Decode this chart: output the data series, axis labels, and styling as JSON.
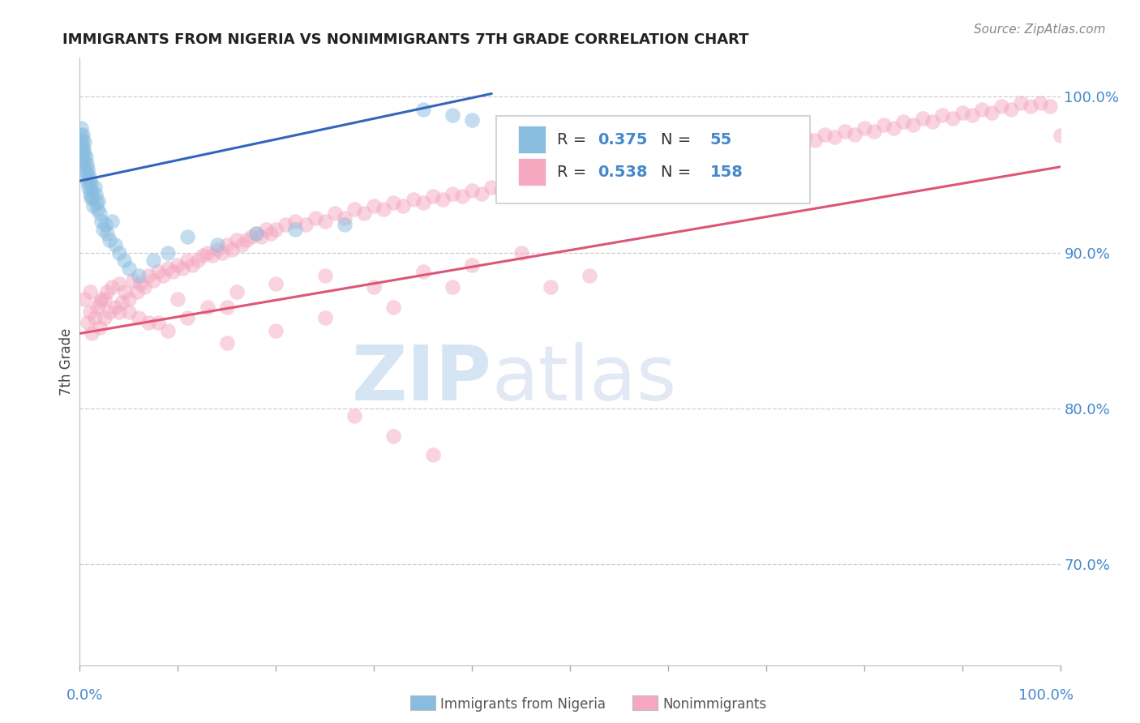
{
  "title": "IMMIGRANTS FROM NIGERIA VS NONIMMIGRANTS 7TH GRADE CORRELATION CHART",
  "source": "Source: ZipAtlas.com",
  "ylabel": "7th Grade",
  "blue_color": "#89bde0",
  "pink_color": "#f5a8c0",
  "blue_line_color": "#3366bb",
  "pink_line_color": "#dd5577",
  "xlim": [
    0.0,
    1.0
  ],
  "ylim": [
    0.635,
    1.025
  ],
  "yticks": [
    0.7,
    0.8,
    0.9,
    1.0
  ],
  "ytick_labels": [
    "70.0%",
    "80.0%",
    "90.0%",
    "100.0%"
  ],
  "blue_line_x": [
    0.0,
    0.42
  ],
  "blue_line_y": [
    0.946,
    1.002
  ],
  "pink_line_x": [
    0.0,
    1.0
  ],
  "pink_line_y": [
    0.848,
    0.955
  ],
  "blue_scatter_x": [
    0.001,
    0.001,
    0.001,
    0.002,
    0.002,
    0.003,
    0.003,
    0.003,
    0.004,
    0.004,
    0.005,
    0.005,
    0.005,
    0.006,
    0.006,
    0.007,
    0.007,
    0.008,
    0.008,
    0.009,
    0.009,
    0.01,
    0.01,
    0.011,
    0.011,
    0.012,
    0.013,
    0.014,
    0.015,
    0.016,
    0.017,
    0.018,
    0.019,
    0.02,
    0.022,
    0.024,
    0.026,
    0.028,
    0.03,
    0.033,
    0.036,
    0.04,
    0.045,
    0.05,
    0.06,
    0.075,
    0.09,
    0.11,
    0.14,
    0.18,
    0.22,
    0.27,
    0.35,
    0.38,
    0.4
  ],
  "blue_scatter_y": [
    0.97,
    0.975,
    0.98,
    0.965,
    0.972,
    0.96,
    0.968,
    0.976,
    0.958,
    0.966,
    0.955,
    0.963,
    0.971,
    0.952,
    0.961,
    0.948,
    0.957,
    0.945,
    0.954,
    0.942,
    0.95,
    0.938,
    0.947,
    0.935,
    0.944,
    0.94,
    0.935,
    0.93,
    0.942,
    0.937,
    0.932,
    0.928,
    0.933,
    0.925,
    0.92,
    0.915,
    0.918,
    0.912,
    0.908,
    0.92,
    0.905,
    0.9,
    0.895,
    0.89,
    0.885,
    0.895,
    0.9,
    0.91,
    0.905,
    0.912,
    0.915,
    0.918,
    0.992,
    0.988,
    0.985
  ],
  "pink_scatter_x": [
    0.005,
    0.008,
    0.01,
    0.012,
    0.015,
    0.018,
    0.02,
    0.022,
    0.025,
    0.028,
    0.03,
    0.033,
    0.036,
    0.04,
    0.043,
    0.046,
    0.05,
    0.054,
    0.058,
    0.062,
    0.066,
    0.07,
    0.075,
    0.08,
    0.085,
    0.09,
    0.095,
    0.1,
    0.105,
    0.11,
    0.115,
    0.12,
    0.125,
    0.13,
    0.135,
    0.14,
    0.145,
    0.15,
    0.155,
    0.16,
    0.165,
    0.17,
    0.175,
    0.18,
    0.185,
    0.19,
    0.195,
    0.2,
    0.21,
    0.22,
    0.23,
    0.24,
    0.25,
    0.26,
    0.27,
    0.28,
    0.29,
    0.3,
    0.31,
    0.32,
    0.33,
    0.34,
    0.35,
    0.36,
    0.37,
    0.38,
    0.39,
    0.4,
    0.41,
    0.42,
    0.43,
    0.44,
    0.45,
    0.46,
    0.47,
    0.48,
    0.49,
    0.5,
    0.51,
    0.52,
    0.53,
    0.54,
    0.55,
    0.56,
    0.57,
    0.58,
    0.59,
    0.6,
    0.61,
    0.62,
    0.63,
    0.64,
    0.65,
    0.66,
    0.67,
    0.68,
    0.69,
    0.7,
    0.71,
    0.72,
    0.73,
    0.74,
    0.75,
    0.76,
    0.77,
    0.78,
    0.79,
    0.8,
    0.81,
    0.82,
    0.83,
    0.84,
    0.85,
    0.86,
    0.87,
    0.88,
    0.89,
    0.9,
    0.91,
    0.92,
    0.93,
    0.94,
    0.95,
    0.96,
    0.97,
    0.98,
    0.99,
    1.0,
    0.01,
    0.025,
    0.04,
    0.06,
    0.08,
    0.1,
    0.13,
    0.16,
    0.2,
    0.25,
    0.3,
    0.35,
    0.4,
    0.45,
    0.48,
    0.52,
    0.15,
    0.2,
    0.25,
    0.32,
    0.38,
    0.28,
    0.32,
    0.36,
    0.02,
    0.05,
    0.07,
    0.09,
    0.11,
    0.15
  ],
  "pink_scatter_y": [
    0.87,
    0.855,
    0.862,
    0.848,
    0.858,
    0.865,
    0.852,
    0.87,
    0.858,
    0.875,
    0.862,
    0.878,
    0.865,
    0.88,
    0.868,
    0.875,
    0.87,
    0.882,
    0.875,
    0.88,
    0.878,
    0.885,
    0.882,
    0.888,
    0.885,
    0.89,
    0.888,
    0.892,
    0.89,
    0.895,
    0.892,
    0.895,
    0.898,
    0.9,
    0.898,
    0.902,
    0.9,
    0.905,
    0.902,
    0.908,
    0.905,
    0.908,
    0.91,
    0.912,
    0.91,
    0.915,
    0.912,
    0.915,
    0.918,
    0.92,
    0.918,
    0.922,
    0.92,
    0.925,
    0.922,
    0.928,
    0.925,
    0.93,
    0.928,
    0.932,
    0.93,
    0.934,
    0.932,
    0.936,
    0.934,
    0.938,
    0.936,
    0.94,
    0.938,
    0.942,
    0.94,
    0.944,
    0.942,
    0.946,
    0.944,
    0.948,
    0.946,
    0.95,
    0.948,
    0.952,
    0.95,
    0.954,
    0.952,
    0.956,
    0.954,
    0.958,
    0.956,
    0.96,
    0.958,
    0.962,
    0.96,
    0.964,
    0.962,
    0.966,
    0.964,
    0.968,
    0.966,
    0.97,
    0.968,
    0.972,
    0.97,
    0.974,
    0.972,
    0.976,
    0.974,
    0.978,
    0.976,
    0.98,
    0.978,
    0.982,
    0.98,
    0.984,
    0.982,
    0.986,
    0.984,
    0.988,
    0.986,
    0.99,
    0.988,
    0.992,
    0.99,
    0.994,
    0.992,
    0.996,
    0.994,
    0.996,
    0.994,
    0.975,
    0.875,
    0.87,
    0.862,
    0.858,
    0.855,
    0.87,
    0.865,
    0.875,
    0.88,
    0.885,
    0.878,
    0.888,
    0.892,
    0.9,
    0.878,
    0.885,
    0.842,
    0.85,
    0.858,
    0.865,
    0.878,
    0.795,
    0.782,
    0.77,
    0.868,
    0.862,
    0.855,
    0.85,
    0.858,
    0.865
  ]
}
